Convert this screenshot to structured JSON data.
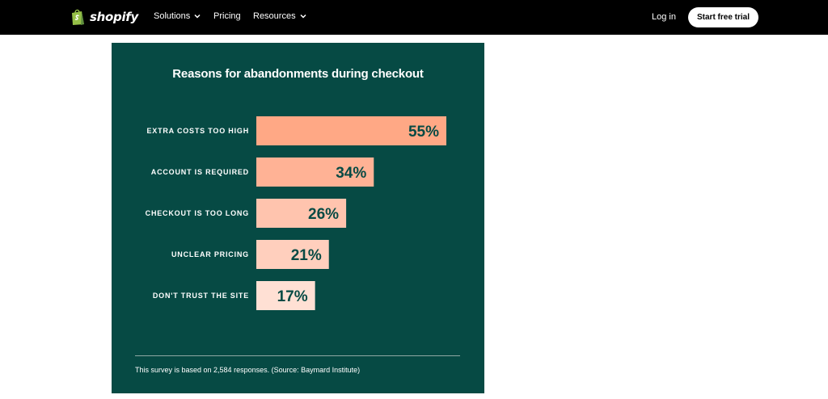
{
  "header": {
    "brand": "shopify",
    "nav": [
      {
        "label": "Solutions",
        "dropdown": true
      },
      {
        "label": "Pricing",
        "dropdown": false
      },
      {
        "label": "Resources",
        "dropdown": true
      }
    ],
    "login_label": "Log in",
    "cta_label": "Start free trial",
    "icons": {
      "logo": "shopify-bag-icon",
      "dropdown": "chevron-down-icon"
    }
  },
  "infographic": {
    "title": "Reasons for abandonments during checkout",
    "footnote": "This survey is based on 2,584 responses. (Source: Baymard Institute)"
  },
  "chart_data": {
    "type": "bar",
    "orientation": "horizontal",
    "title": "Reasons for abandonments during checkout",
    "categories": [
      "EXTRA COSTS TOO HIGH",
      "ACCOUNT IS REQUIRED",
      "CHECKOUT IS TOO LONG",
      "UNCLEAR PRICING",
      "DON'T TRUST THE SITE"
    ],
    "values": [
      55,
      34,
      26,
      21,
      17
    ],
    "value_labels": [
      "55%",
      "34%",
      "26%",
      "21%",
      "17%"
    ],
    "unit": "%",
    "bar_colors": [
      "#ffa885",
      "#ffb295",
      "#ffc4ae",
      "#ffcfbd",
      "#ffe0d4"
    ],
    "background_color": "#064a44",
    "grid": false,
    "legend": "none"
  },
  "colors": {
    "nav_bg": "#000000",
    "panel_bg": "#064a44",
    "logo_green": "#95bf47"
  }
}
